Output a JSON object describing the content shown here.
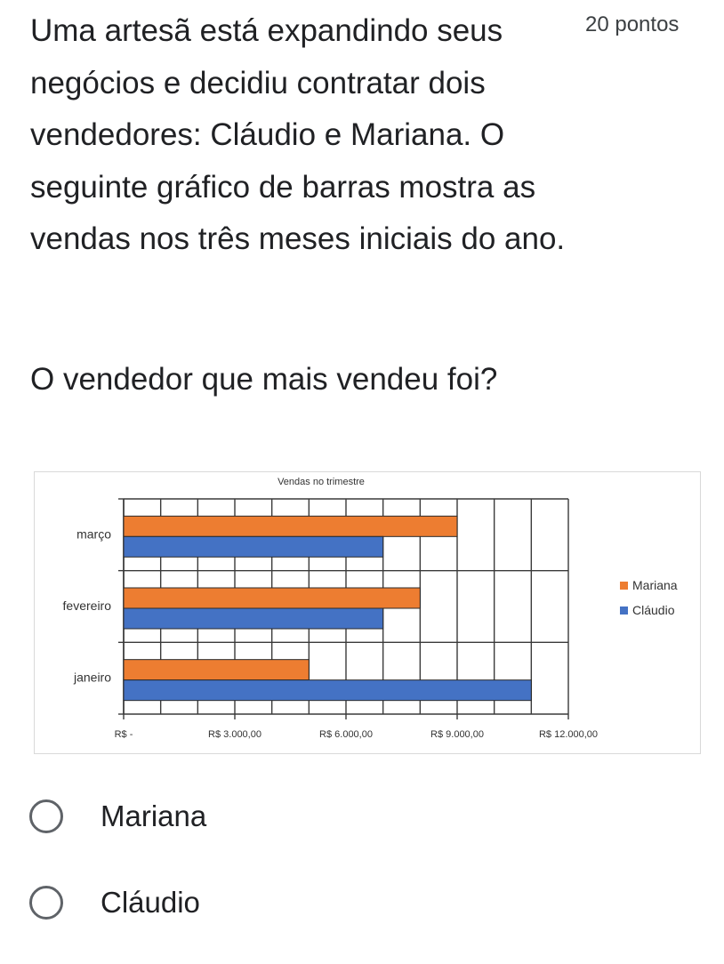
{
  "question": {
    "text": "Uma artesã está expandindo seus negócios e decidiu contratar dois vendedores: Cláudio e Mariana. O seguinte gráfico de barras mostra as vendas nos três meses iniciais do ano.",
    "points": "20 pontos",
    "subquestion": "O vendedor que mais vendeu foi?"
  },
  "chart_data": {
    "type": "bar",
    "orientation": "horizontal",
    "title": "Vendas no trimestre",
    "categories": [
      "janeiro",
      "fevereiro",
      "março"
    ],
    "series": [
      {
        "name": "Mariana",
        "color": "#ed7d31",
        "values": [
          5000,
          8000,
          9000
        ]
      },
      {
        "name": "Cláudio",
        "color": "#4472c4",
        "values": [
          11000,
          7000,
          7000
        ]
      }
    ],
    "xlim": [
      0,
      12000
    ],
    "xticks": [
      0,
      3000,
      6000,
      9000,
      12000
    ],
    "xtick_labels": [
      "R$ -",
      "R$ 3.000,00",
      "R$ 6.000,00",
      "R$ 9.000,00",
      "R$ 12.000,00"
    ],
    "grid": true,
    "legend": "right"
  },
  "options": [
    {
      "label": "Mariana"
    },
    {
      "label": "Cláudio"
    }
  ]
}
